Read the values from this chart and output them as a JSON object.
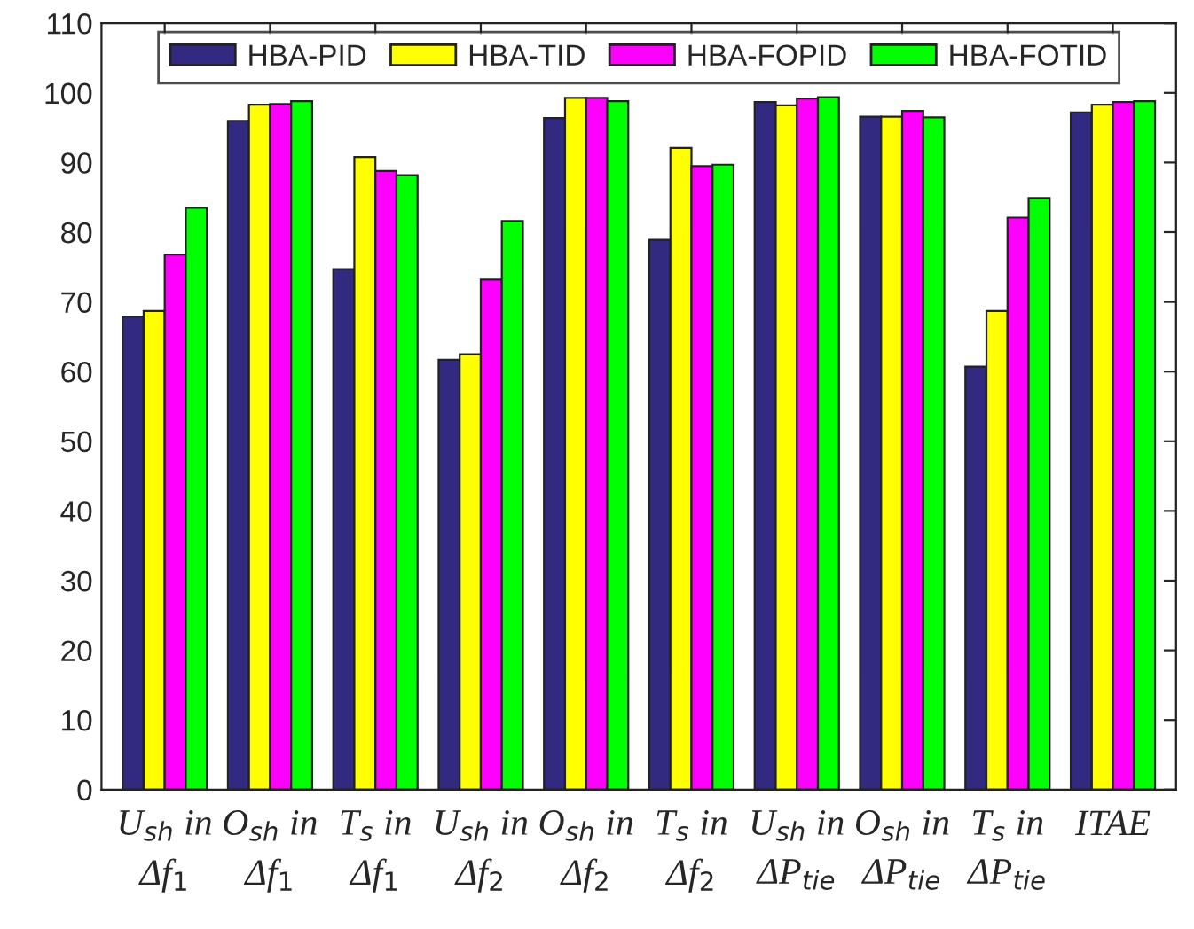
{
  "chart_data": {
    "type": "bar",
    "categories": [
      "U$_{sh}$ in\nΔf$_{1}$",
      "O$_{sh}$ in\nΔf$_{1}$",
      "T$_{s}$ in\nΔf$_{1}$",
      "U$_{sh}$ in\nΔf$_{2}$",
      "O$_{sh}$ in\nΔf$_{2}$",
      "T$_{s}$ in\nΔf$_{2}$",
      "U$_{sh}$ in\nΔP$_{tie}$",
      "O$_{sh}$ in\nΔP$_{tie}$",
      "T$_{s}$ in\nΔP$_{tie}$",
      "ITAE"
    ],
    "series": [
      {
        "name": "HBA-PID",
        "color": "#312a80",
        "values": [
          67.9,
          96.0,
          74.7,
          61.7,
          96.4,
          78.9,
          98.7,
          96.6,
          60.7,
          97.2
        ]
      },
      {
        "name": "HBA-TID",
        "color": "#ffff00",
        "values": [
          68.7,
          98.3,
          90.8,
          62.5,
          99.3,
          92.1,
          98.2,
          96.6,
          68.7,
          98.3
        ]
      },
      {
        "name": "HBA-FOPID",
        "color": "#ff00ff",
        "values": [
          76.8,
          98.4,
          88.8,
          73.2,
          99.3,
          89.5,
          99.2,
          97.4,
          82.1,
          98.7
        ]
      },
      {
        "name": "HBA-FOTID",
        "color": "#00ff00",
        "values": [
          83.5,
          98.8,
          88.2,
          81.6,
          98.8,
          89.7,
          99.4,
          96.5,
          84.9,
          98.8
        ]
      }
    ],
    "ylim": [
      0,
      110
    ],
    "yticks": [
      0,
      10,
      20,
      30,
      40,
      50,
      60,
      70,
      80,
      90,
      100,
      110
    ],
    "legend": "top",
    "grid": false
  }
}
